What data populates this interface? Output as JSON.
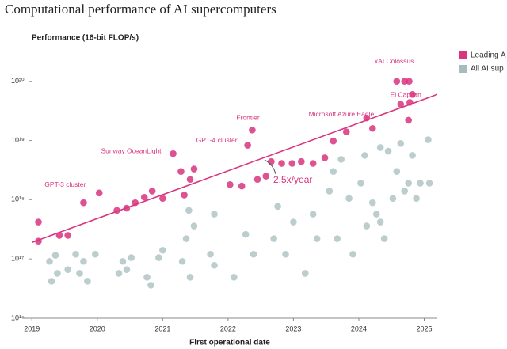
{
  "chart_data": {
    "type": "scatter",
    "title": "Computational performance of AI supercomputers",
    "y_label": "Performance (16-bit FLOP/s)",
    "x_label": "First operational date",
    "log_y": true,
    "legend": "top-right",
    "xlim": [
      2018.9,
      2025.2
    ],
    "xticks": [
      2019,
      2020,
      2021,
      2022,
      2023,
      2024,
      2025
    ],
    "ylim": [
      1e+16,
      3.5e+20
    ],
    "yticks": [
      {
        "value": 1e+16,
        "label": "10¹⁶"
      },
      {
        "value": 1e+17,
        "label": "10¹⁷"
      },
      {
        "value": 1e+18,
        "label": "10¹⁸"
      },
      {
        "value": 1e+19,
        "label": "10¹⁹"
      },
      {
        "value": 1e+20,
        "label": "10²⁰"
      }
    ],
    "series": [
      {
        "name": "All AI sup",
        "color": "#a6bcbd",
        "x": [
          2019.27,
          2019.36,
          2019.39,
          2019.3,
          2019.55,
          2019.67,
          2019.73,
          2019.79,
          2019.85,
          2019.97,
          2020.33,
          2020.39,
          2020.45,
          2020.52,
          2020.76,
          2020.82,
          2020.94,
          2021.0,
          2021.3,
          2021.36,
          2021.4,
          2021.42,
          2021.48,
          2021.73,
          2021.79,
          2021.79,
          2022.09,
          2022.27,
          2022.39,
          2022.7,
          2022.76,
          2022.88,
          2023.0,
          2023.18,
          2023.3,
          2023.36,
          2023.55,
          2023.61,
          2023.67,
          2023.73,
          2023.85,
          2023.91,
          2024.03,
          2024.09,
          2024.12,
          2024.21,
          2024.27,
          2024.33,
          2024.39,
          2024.45,
          2024.52,
          2024.58,
          2024.64,
          2024.7,
          2024.76,
          2024.82,
          2024.88,
          2024.94,
          2025.06,
          2025.08,
          2024.33
        ],
        "values": [
          9.1e+16,
          1.15e+17,
          5.7e+16,
          4.2e+16,
          6.6e+16,
          1.2e+17,
          5.7e+16,
          9.1e+16,
          4.2e+16,
          1.2e+17,
          5.7e+16,
          9.1e+16,
          6.6e+16,
          1.05e+17,
          4.9e+16,
          3.6e+16,
          1.05e+17,
          1.4e+17,
          9.1e+16,
          2.2e+17,
          6.6e+17,
          4.9e+16,
          3.6e+17,
          1.2e+17,
          5.7e+17,
          7.8e+16,
          4.9e+16,
          2.6e+17,
          1.2e+17,
          2.2e+17,
          7.7e+17,
          1.2e+17,
          4.2e+17,
          5.7e+16,
          5.7e+17,
          2.2e+17,
          1.4e+18,
          3e+18,
          2.2e+17,
          4.8e+18,
          1.05e+18,
          1.2e+17,
          1.9e+18,
          5.6e+18,
          3.6e+17,
          8.9e+17,
          5.7e+17,
          7.6e+18,
          2.2e+17,
          6.6e+18,
          1.05e+18,
          3e+18,
          8.9e+18,
          1.4e+18,
          1.9e+18,
          5.6e+18,
          1.05e+18,
          1.9e+18,
          1.03e+19,
          1.9e+18,
          4.2e+17
        ]
      },
      {
        "name": "Leading A",
        "color": "#d9347f",
        "x": [
          2019.1,
          2019.1,
          2019.42,
          2019.55,
          2019.79,
          2020.03,
          2020.3,
          2020.45,
          2020.58,
          2020.72,
          2020.84,
          2021.0,
          2021.16,
          2021.28,
          2021.33,
          2021.42,
          2021.48,
          2022.03,
          2022.21,
          2022.3,
          2022.37,
          2022.45,
          2022.58,
          2022.66,
          2022.82,
          2022.98,
          2023.12,
          2023.3,
          2023.48,
          2023.61,
          2023.81,
          2024.12,
          2024.21,
          2024.58,
          2024.7,
          2024.77,
          2024.82,
          2024.78,
          2024.64,
          2024.76
        ],
        "values": [
          4.2e+17,
          2e+17,
          2.5e+17,
          2.5e+17,
          8.9e+17,
          1.3e+18,
          6.6e+17,
          7.2e+17,
          8.9e+17,
          1.1e+18,
          1.4e+18,
          1.05e+18,
          6e+18,
          3e+18,
          1.2e+18,
          2.2e+18,
          3.3e+18,
          1.8e+18,
          1.7e+18,
          8.3e+18,
          1.5e+19,
          2.2e+18,
          2.5e+18,
          4.4e+18,
          4.1e+18,
          4.1e+18,
          4.4e+18,
          4.1e+18,
          5.1e+18,
          9.8e+18,
          1.4e+19,
          2.4e+19,
          1.6e+19,
          1e+20,
          1e+20,
          1e+20,
          6e+19,
          4.4e+19,
          4.1e+19,
          2.2e+19
        ]
      }
    ],
    "trend": {
      "label": "2.5x/year",
      "color": "#d9347f",
      "x": [
        2019.0,
        2025.2
      ],
      "values": [
        1.9e+17,
        6e+19
      ]
    },
    "annotations": [
      {
        "text": "xAI Colossus",
        "x": 2024.58,
        "y": 1e+20
      },
      {
        "text": "El Capitan",
        "x": 2024.82,
        "y": 6e+19
      },
      {
        "text": "Microsoft Azure Eagle",
        "x": 2023.81,
        "y": 1.4e+19
      },
      {
        "text": "Frontier",
        "x": 2022.37,
        "y": 1.5e+19
      },
      {
        "text": "GPT-4 cluster",
        "x": 2022.3,
        "y": 8.3e+18
      },
      {
        "text": "Sunway OceanLight",
        "x": 2021.16,
        "y": 6e+18
      },
      {
        "text": "GPT-3 cluster",
        "x": 2020.03,
        "y": 1.3e+18
      }
    ]
  }
}
